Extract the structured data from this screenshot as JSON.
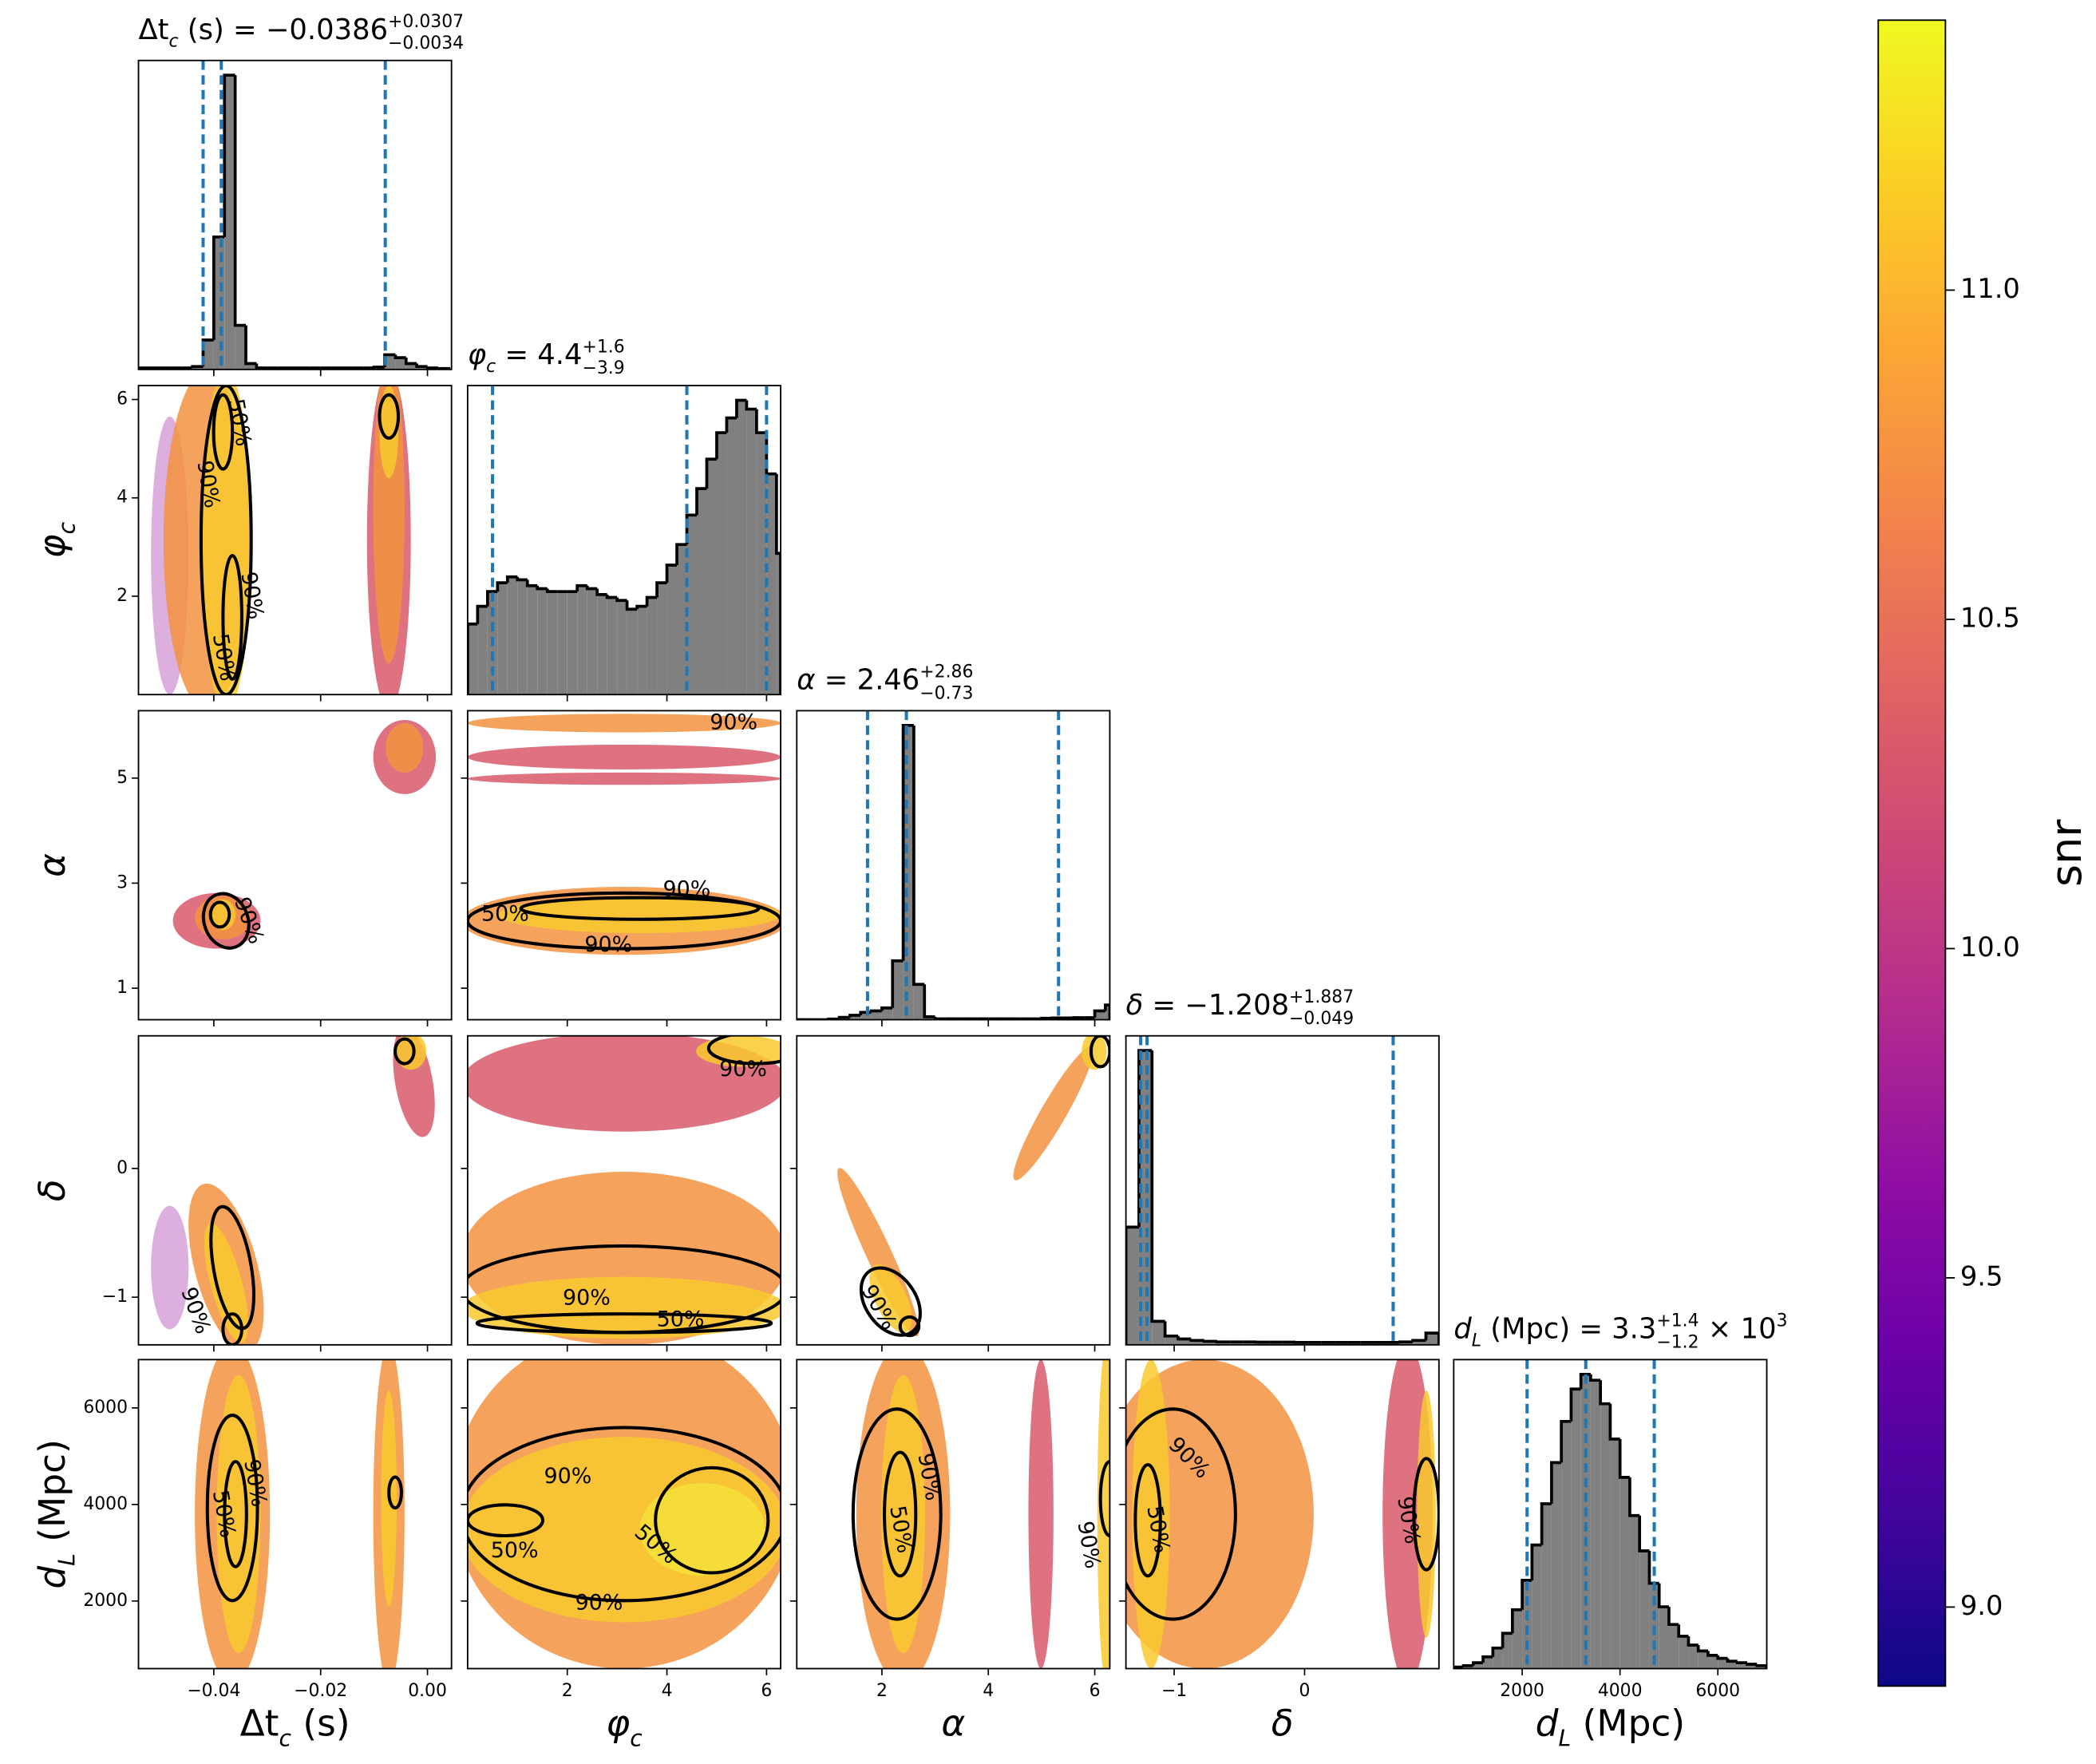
{
  "chart_data": {
    "type": "corner",
    "hist_ylim": [
      0,
      105
    ],
    "hist_color": "#808080",
    "quantile_color": "#1f77b4",
    "params": [
      {
        "label": [
          {
            "t": "Δt"
          },
          {
            "t": "c",
            "s": "sub",
            "m": true
          },
          {
            "t": " (s)"
          }
        ],
        "title": [
          {
            "t": "Δt"
          },
          {
            "t": "c",
            "s": "sub",
            "m": true
          },
          {
            "t": " (s) = −0.0386"
          },
          {
            "t": "+0.0307",
            "s": "sup"
          },
          {
            "t": "−0.0034",
            "s": "low"
          }
        ],
        "lim": [
          -0.0541,
          0.0045
        ],
        "xticks": [
          {
            "value": -0.04,
            "label": "−0.04"
          },
          {
            "value": -0.02,
            "label": "−0.02"
          },
          {
            "value": 0,
            "label": "0.00"
          }
        ],
        "quantiles": [
          -0.042,
          -0.0386,
          -0.0079
        ],
        "hist": {
          "bins": [
            -0.054,
            -0.052,
            -0.05,
            -0.048,
            -0.046,
            -0.044,
            -0.042,
            -0.04,
            -0.038,
            -0.036,
            -0.034,
            -0.032,
            -0.03,
            -0.028,
            -0.026,
            -0.024,
            -0.022,
            -0.02,
            -0.018,
            -0.016,
            -0.014,
            -0.012,
            -0.01,
            -0.008,
            -0.006,
            -0.004,
            -0.002,
            0,
            0.002,
            0.004
          ],
          "counts": [
            0.5,
            0.5,
            0.5,
            0.5,
            0.5,
            1,
            10,
            45,
            100,
            15,
            2,
            0.5,
            0.5,
            0.5,
            0.5,
            0.5,
            0.5,
            0.5,
            0.5,
            0.5,
            0.5,
            0.5,
            0.8,
            5,
            4,
            2,
            1,
            0.5,
            0.3
          ]
        }
      },
      {
        "label": [
          {
            "t": "φ",
            "m": true
          },
          {
            "t": "c",
            "s": "sub",
            "m": true
          }
        ],
        "title": [
          {
            "t": "φ",
            "m": true
          },
          {
            "t": "c",
            "s": "sub",
            "m": true
          },
          {
            "t": " = 4.4"
          },
          {
            "t": "+1.6",
            "s": "sup"
          },
          {
            "t": "−3.9",
            "s": "low"
          }
        ],
        "lim": [
          0,
          6.283
        ],
        "xticks": [
          2,
          4,
          6
        ],
        "yticks": [
          2,
          4,
          6
        ],
        "quantiles": [
          0.5,
          4.4,
          6.0
        ],
        "hist": {
          "bins": [
            0,
            0.2,
            0.4,
            0.6,
            0.8,
            1,
            1.2,
            1.4,
            1.6,
            1.8,
            2,
            2.2,
            2.4,
            2.6,
            2.8,
            3,
            3.2,
            3.4,
            3.6,
            3.8,
            4,
            4.2,
            4.4,
            4.6,
            4.8,
            5,
            5.2,
            5.4,
            5.6,
            5.8,
            6,
            6.2,
            6.283
          ],
          "counts": [
            24,
            30,
            35,
            38,
            40,
            39,
            37,
            36,
            35,
            35,
            35,
            37,
            36,
            34,
            33,
            32,
            29,
            30,
            33,
            38,
            44,
            51,
            61,
            70,
            80,
            89,
            94,
            100,
            97,
            89,
            75,
            48
          ]
        }
      },
      {
        "label": [
          {
            "t": "α",
            "m": true
          }
        ],
        "title": [
          {
            "t": "α",
            "m": true
          },
          {
            "t": " = 2.46"
          },
          {
            "t": "+2.86",
            "s": "sup"
          },
          {
            "t": "−0.73",
            "s": "low"
          }
        ],
        "lim": [
          0.4,
          6.283
        ],
        "xticks": [
          2,
          4,
          6
        ],
        "yticks": [
          1,
          3,
          5
        ],
        "quantiles": [
          1.73,
          2.46,
          5.32
        ],
        "hist": {
          "bins": [
            0.4,
            0.6,
            0.8,
            1,
            1.2,
            1.4,
            1.6,
            1.8,
            2,
            2.2,
            2.4,
            2.6,
            2.8,
            3,
            3.2,
            3.4,
            3.6,
            3.8,
            4,
            4.2,
            4.4,
            4.6,
            4.8,
            5,
            5.2,
            5.4,
            5.6,
            5.8,
            6,
            6.2,
            6.283
          ],
          "counts": [
            0,
            0,
            0,
            0.2,
            0.8,
            1.5,
            2.5,
            3,
            4,
            20,
            100,
            12,
            1,
            0.3,
            0.3,
            0.3,
            0.3,
            0.3,
            0.3,
            0.3,
            0.3,
            0.3,
            0.3,
            0.5,
            0.6,
            0.6,
            0.7,
            0.7,
            3,
            5
          ]
        }
      },
      {
        "label": [
          {
            "t": "δ",
            "m": true
          }
        ],
        "title": [
          {
            "t": "δ",
            "m": true
          },
          {
            "t": " = −1.208"
          },
          {
            "t": "+1.887",
            "s": "sup"
          },
          {
            "t": "−0.049",
            "s": "low"
          }
        ],
        "lim": [
          -1.37,
          1.03
        ],
        "xticks": [
          {
            "value": -1,
            "label": "−1"
          },
          0
        ],
        "yticks": [
          {
            "value": -1,
            "label": "−1"
          },
          0
        ],
        "quantiles": [
          -1.257,
          -1.208,
          0.679
        ],
        "hist": {
          "bins": [
            -1.37,
            -1.27,
            -1.17,
            -1.07,
            -0.97,
            -0.87,
            -0.77,
            -0.67,
            -0.57,
            -0.47,
            -0.37,
            -0.27,
            -0.17,
            -0.07,
            0.03,
            0.13,
            0.23,
            0.33,
            0.43,
            0.53,
            0.63,
            0.73,
            0.83,
            0.93,
            1.03
          ],
          "counts": [
            40,
            100,
            8,
            3,
            2,
            1.5,
            1.2,
            1,
            1,
            1,
            0.9,
            0.9,
            0.9,
            0.8,
            0.8,
            0.8,
            0.8,
            0.8,
            0.8,
            0.8,
            0.8,
            1,
            1.5,
            4
          ]
        }
      },
      {
        "label": [
          {
            "t": "d",
            "m": true
          },
          {
            "t": "L",
            "s": "sub",
            "m": true
          },
          {
            "t": " (Mpc)"
          }
        ],
        "title": [
          {
            "t": "d",
            "m": true
          },
          {
            "t": "L",
            "s": "sub",
            "m": true
          },
          {
            "t": " (Mpc) = 3.3"
          },
          {
            "t": "+1.4",
            "s": "sup"
          },
          {
            "t": "−1.2",
            "s": "low"
          },
          {
            "t": " × 10"
          },
          {
            "t": "3",
            "s": "exp"
          }
        ],
        "lim": [
          600,
          7000
        ],
        "xticks": [
          2000,
          4000,
          6000
        ],
        "yticks": [
          2000,
          4000,
          6000
        ],
        "quantiles": [
          2100,
          3300,
          4700
        ],
        "hist": {
          "bins": [
            600,
            800,
            1000,
            1200,
            1400,
            1600,
            1800,
            2000,
            2200,
            2400,
            2600,
            2800,
            3000,
            3200,
            3400,
            3600,
            3800,
            4000,
            4200,
            4400,
            4600,
            4800,
            5000,
            5200,
            5400,
            5600,
            5800,
            6000,
            6200,
            6400,
            6600,
            6800,
            7000
          ],
          "counts": [
            0.5,
            1,
            2,
            4,
            7,
            12,
            20,
            30,
            42,
            56,
            70,
            84,
            95,
            100,
            98,
            90,
            78,
            65,
            52,
            40,
            29,
            21,
            15,
            11,
            8,
            6,
            4.5,
            3.5,
            2.5,
            2,
            1.5,
            1
          ]
        }
      }
    ],
    "pairs": [
      {
        "x": 0,
        "y": 1,
        "contour_labels": [
          "50%",
          "90%",
          "90%",
          "50%"
        ]
      },
      {
        "x": 0,
        "y": 2,
        "contour_labels": [
          "90%"
        ]
      },
      {
        "x": 1,
        "y": 2,
        "contour_labels": [
          "90%",
          "90%",
          "50%",
          "90%"
        ]
      },
      {
        "x": 0,
        "y": 3,
        "contour_labels": [
          "90%"
        ]
      },
      {
        "x": 1,
        "y": 3,
        "contour_labels": [
          "90%",
          "90%",
          "50%"
        ]
      },
      {
        "x": 2,
        "y": 3,
        "contour_labels": [
          "90%"
        ]
      },
      {
        "x": 0,
        "y": 4,
        "contour_labels": [
          "50%",
          "90%"
        ]
      },
      {
        "x": 1,
        "y": 4,
        "contour_labels": [
          "90%",
          "50%",
          "50%",
          "90%"
        ]
      },
      {
        "x": 2,
        "y": 4,
        "contour_labels": [
          "90%",
          "50%",
          "90%"
        ]
      },
      {
        "x": 3,
        "y": 4,
        "contour_labels": [
          "90%",
          "50%",
          "90%"
        ]
      }
    ],
    "colorbar": {
      "label": "snr",
      "colormap": "plasma",
      "lim": [
        8.88,
        11.41
      ],
      "ticks": [
        {
          "value": 9.0,
          "label": "9.0"
        },
        {
          "value": 9.5,
          "label": "9.5"
        },
        {
          "value": 10.0,
          "label": "10.0"
        },
        {
          "value": 10.5,
          "label": "10.5"
        },
        {
          "value": 11.0,
          "label": "11.0"
        }
      ]
    }
  }
}
